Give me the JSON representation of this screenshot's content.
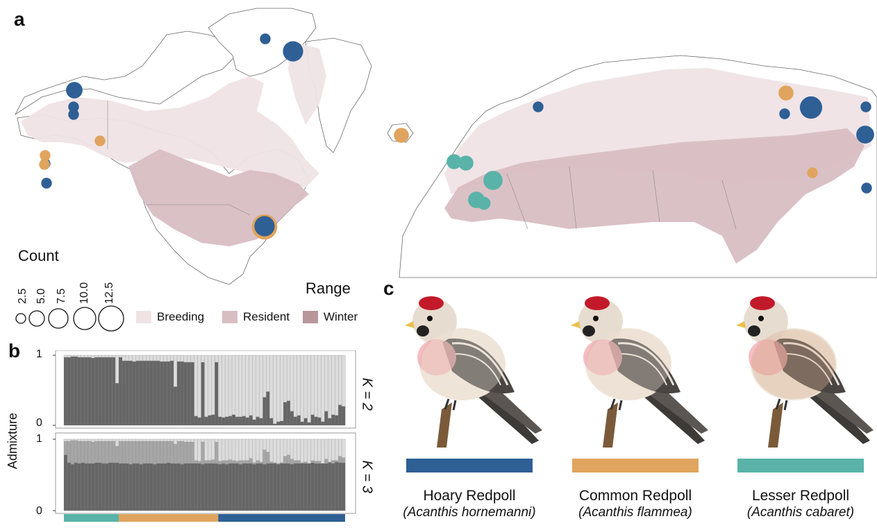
{
  "panels": {
    "a": "a",
    "b": "b",
    "c": "c"
  },
  "colors": {
    "hornemanni": "#2e5f95",
    "flammea": "#e0a45e",
    "cabaret": "#59b3a8",
    "breeding": "#efe3e5",
    "resident": "#d8bec3",
    "winter": "#b8979c",
    "dark_bar": "#666666",
    "mid_bar": "#a6a6a6",
    "light_bar": "#dcdcdc"
  },
  "legend": {
    "count_title": "Count",
    "count_values": [
      "2.5",
      "5.0",
      "7.5",
      "10.0",
      "12.5"
    ],
    "range_title": "Range",
    "range_items": [
      {
        "label": "Breeding",
        "color": "#efe3e5"
      },
      {
        "label": "Resident",
        "color": "#d8bec3"
      },
      {
        "label": "Winter",
        "color": "#b8979c"
      }
    ]
  },
  "admixture": {
    "ylabel": "Admixture",
    "k2_label": "K = 2",
    "k3_label": "K = 3",
    "tick_top": "1",
    "tick_bottom": "0",
    "k2_values": [
      0.97,
      0.97,
      0.98,
      0.98,
      0.97,
      0.97,
      0.97,
      0.97,
      0.96,
      0.97,
      0.97,
      0.97,
      0.97,
      0.97,
      0.97,
      0.6,
      0.97,
      0.92,
      0.92,
      0.92,
      0.91,
      0.92,
      0.92,
      0.92,
      0.92,
      0.92,
      0.92,
      0.92,
      0.91,
      0.91,
      0.91,
      0.92,
      0.55,
      0.91,
      0.91,
      0.9,
      0.9,
      0.9,
      0.13,
      0.11,
      0.9,
      0.12,
      0.14,
      0.15,
      0.9,
      0.12,
      0.11,
      0.12,
      0.13,
      0.15,
      0.12,
      0.12,
      0.13,
      0.11,
      0.14,
      0.08,
      0.12,
      0.1,
      0.4,
      0.48,
      0.1,
      0.02,
      0.05,
      0.06,
      0.33,
      0.35,
      0.2,
      0.12,
      0.14,
      0.05,
      0.1,
      0.04,
      0.15,
      0.12,
      0.11,
      0.05,
      0.2,
      0.1,
      0.15,
      0.14,
      0.29,
      0.27
    ],
    "k3_dark": [
      0.78,
      0.67,
      0.65,
      0.67,
      0.66,
      0.67,
      0.66,
      0.66,
      0.66,
      0.67,
      0.67,
      0.66,
      0.66,
      0.67,
      0.67,
      0.67,
      0.66,
      0.66,
      0.66,
      0.65,
      0.66,
      0.66,
      0.65,
      0.66,
      0.66,
      0.66,
      0.65,
      0.66,
      0.66,
      0.66,
      0.67,
      0.66,
      0.66,
      0.66,
      0.65,
      0.66,
      0.66,
      0.66,
      0.66,
      0.66,
      0.65,
      0.66,
      0.66,
      0.66,
      0.66,
      0.65,
      0.66,
      0.65,
      0.66,
      0.66,
      0.66,
      0.65,
      0.66,
      0.66,
      0.66,
      0.65,
      0.66,
      0.66,
      0.65,
      0.66,
      0.66,
      0.66,
      0.65,
      0.66,
      0.66,
      0.66,
      0.65,
      0.66,
      0.66,
      0.66,
      0.66,
      0.66,
      0.67,
      0.66,
      0.66,
      0.66,
      0.66,
      0.67,
      0.66,
      0.68,
      0.67,
      0.67
    ],
    "k3_mid": [
      0.97,
      0.97,
      0.98,
      0.98,
      0.97,
      0.97,
      0.97,
      0.97,
      0.96,
      0.97,
      0.97,
      0.97,
      0.97,
      0.97,
      0.97,
      0.9,
      0.97,
      0.97,
      0.97,
      0.97,
      0.97,
      0.97,
      0.97,
      0.97,
      0.97,
      0.97,
      0.97,
      0.97,
      0.97,
      0.97,
      0.97,
      0.97,
      0.93,
      0.97,
      0.97,
      0.96,
      0.96,
      0.96,
      0.7,
      0.69,
      0.96,
      0.7,
      0.7,
      0.71,
      0.96,
      0.69,
      0.7,
      0.7,
      0.71,
      0.7,
      0.69,
      0.7,
      0.7,
      0.7,
      0.73,
      0.67,
      0.7,
      0.68,
      0.85,
      0.82,
      0.68,
      0.67,
      0.66,
      0.67,
      0.76,
      0.78,
      0.72,
      0.7,
      0.7,
      0.67,
      0.68,
      0.66,
      0.7,
      0.69,
      0.69,
      0.66,
      0.72,
      0.68,
      0.7,
      0.7,
      0.76,
      0.74
    ],
    "group_bar": [
      {
        "species": "cabaret",
        "count": 16
      },
      {
        "species": "flammea",
        "count": 29
      },
      {
        "species": "hornemanni",
        "count": 37
      }
    ]
  },
  "birds": [
    {
      "common": "Hoary Redpoll",
      "scientific": "(Acanthis hornemanni)",
      "color": "#2e5f95"
    },
    {
      "common": "Common Redpoll",
      "scientific": "(Acanthis flammea)",
      "color": "#e0a45e"
    },
    {
      "common": "Lesser Redpoll",
      "scientific": "(Acanthis cabaret)",
      "color": "#59b3a8"
    }
  ],
  "samples": [
    {
      "species": "hornemanni",
      "count": 4
    },
    {
      "species": "hornemanni",
      "count": 7
    },
    {
      "species": "hornemanni",
      "count": 1
    },
    {
      "species": "hornemanni",
      "count": 1
    },
    {
      "species": "flammea",
      "count": 1
    },
    {
      "species": "hornemanni",
      "count": 1
    },
    {
      "species": "flammea",
      "count": 1
    },
    {
      "species": "flammea",
      "count": 1
    },
    {
      "species": "hornemanni",
      "count": 1
    },
    {
      "species": "flammea",
      "count": 12.5
    },
    {
      "species": "hornemanni",
      "count": 7
    },
    {
      "species": "hornemanni",
      "count": 1
    },
    {
      "species": "flammea",
      "count": 3
    },
    {
      "species": "cabaret",
      "count": 3
    },
    {
      "species": "cabaret",
      "count": 3
    },
    {
      "species": "cabaret",
      "count": 6
    },
    {
      "species": "cabaret",
      "count": 4
    },
    {
      "species": "cabaret",
      "count": 2
    },
    {
      "species": "hornemanni",
      "count": 1
    },
    {
      "species": "flammea",
      "count": 3
    },
    {
      "species": "hornemanni",
      "count": 1
    },
    {
      "species": "hornemanni",
      "count": 9
    },
    {
      "species": "hornemanni",
      "count": 1
    },
    {
      "species": "hornemanni",
      "count": 5
    },
    {
      "species": "flammea",
      "count": 1
    },
    {
      "species": "hornemanni",
      "count": 1
    }
  ]
}
